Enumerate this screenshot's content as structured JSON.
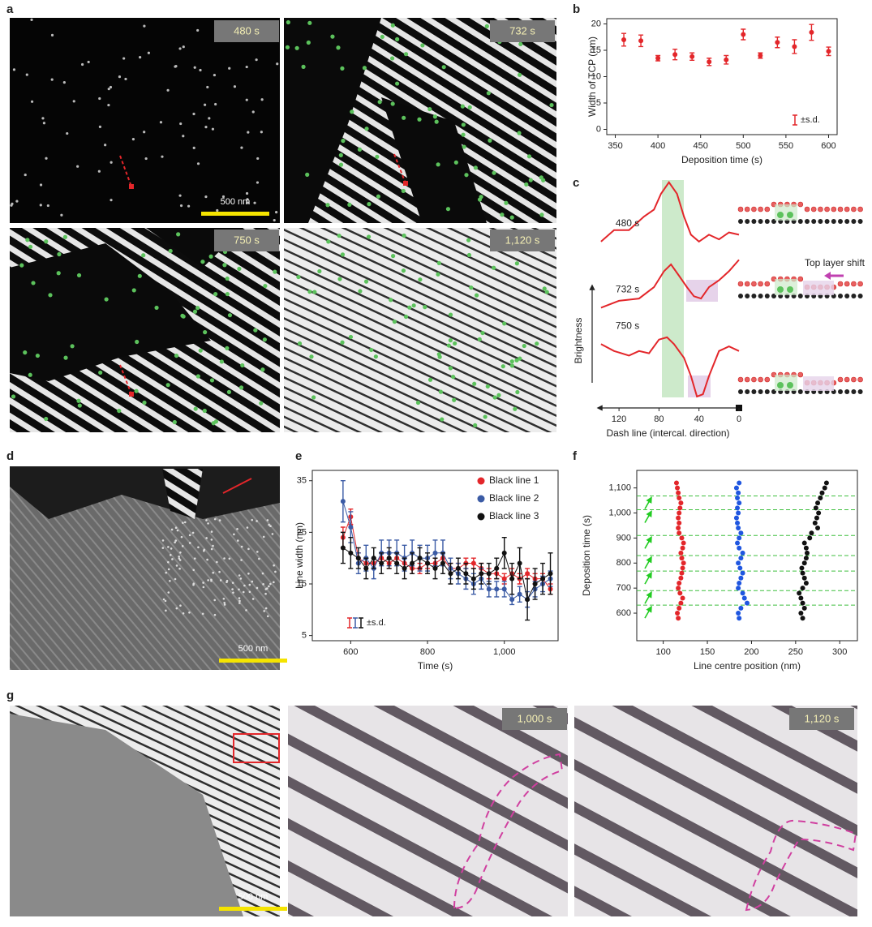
{
  "panel_labels": [
    "a",
    "b",
    "c",
    "d",
    "e",
    "f",
    "g"
  ],
  "images": {
    "a": {
      "times": [
        "480 s",
        "732 s",
        "750 s",
        "1,120 s"
      ],
      "scale_bar": "500 nm"
    },
    "d": {
      "scale_bar": "500 nm"
    },
    "g": {
      "times": [
        "1,000 s",
        "1,120 s"
      ],
      "scale_bar": "500 nm"
    }
  },
  "chart_data": [
    {
      "type": "scatter",
      "xlabel": "Deposition time (s)",
      "ylabel": "Width of TCP (nm)",
      "x": [
        360,
        380,
        400,
        420,
        440,
        460,
        480,
        500,
        520,
        540,
        560,
        580,
        600
      ],
      "series": [
        {
          "color": "#e3262a",
          "values": [
            17,
            16.8,
            13.5,
            14.2,
            13.8,
            12.8,
            13.2,
            18,
            14,
            16.5,
            15.7,
            18.4,
            14.8
          ],
          "errors": [
            1.2,
            1.1,
            0.5,
            1,
            0.7,
            0.7,
            0.8,
            1,
            0.5,
            1,
            1.3,
            1.5,
            0.8
          ]
        }
      ],
      "xlim": [
        340,
        610
      ],
      "ylim": [
        -1,
        21
      ],
      "xticks": [
        350,
        400,
        450,
        500,
        550,
        600
      ],
      "yticks": [
        0,
        5,
        10,
        15,
        20
      ],
      "error_label": "±s.d."
    },
    {
      "type": "line",
      "xlabel": "Dash line (intercal. direction)",
      "ylabel": "Brightness",
      "annotation": "Top layer shift",
      "xlim": [
        142,
        0
      ],
      "ylim": [
        0,
        100
      ],
      "xticks": [
        120,
        80,
        40,
        0
      ],
      "series": [
        {
          "name": "480 s",
          "color": "#e3262a",
          "x": [
            138,
            125,
            110,
            95,
            85,
            78,
            70,
            62,
            55,
            48,
            40,
            30,
            20,
            10,
            0
          ],
          "values": [
            73,
            78,
            78,
            84,
            87,
            94,
            99,
            94,
            84,
            76,
            73,
            76,
            74,
            77,
            76
          ]
        },
        {
          "name": "732 s",
          "color": "#e3262a",
          "x": [
            138,
            120,
            100,
            85,
            75,
            68,
            60,
            52,
            45,
            38,
            30,
            20,
            10,
            0
          ],
          "values": [
            44,
            47,
            48,
            53,
            60,
            63,
            58,
            53,
            49,
            48,
            53,
            56,
            60,
            65
          ]
        },
        {
          "name": "750 s",
          "color": "#e3262a",
          "x": [
            138,
            125,
            110,
            100,
            90,
            80,
            72,
            65,
            55,
            48,
            42,
            36,
            30,
            20,
            10,
            0
          ],
          "values": [
            28,
            25,
            23,
            25,
            24,
            30,
            31,
            28,
            22,
            14,
            5,
            6,
            14,
            25,
            27,
            25
          ]
        }
      ]
    },
    {
      "type": "line",
      "marker": "circle",
      "xlabel": "Time (s)",
      "ylabel": "Line width (nm)",
      "legend": "upper right",
      "error_label": "±s.d.",
      "x": [
        580,
        600,
        620,
        640,
        660,
        680,
        700,
        720,
        740,
        760,
        780,
        800,
        820,
        840,
        860,
        880,
        900,
        920,
        940,
        960,
        980,
        1000,
        1020,
        1040,
        1060,
        1080,
        1100,
        1120
      ],
      "series": [
        {
          "name": "Black line 1",
          "color": "#e3262a",
          "values": [
            24,
            28,
            20,
            19,
            19,
            20,
            19,
            20,
            19,
            18,
            18,
            19,
            19,
            20,
            18,
            18,
            19,
            19,
            18,
            17,
            17,
            16,
            17,
            16,
            17,
            16,
            16,
            14
          ],
          "errors": [
            2,
            1.5,
            1,
            1,
            1,
            1,
            1,
            1,
            1,
            1,
            1,
            1,
            1,
            1,
            1,
            1,
            1,
            1,
            1,
            1,
            1,
            1,
            1,
            1,
            1,
            1,
            1,
            1
          ]
        },
        {
          "name": "Black line 2",
          "color": "#3b5ba5",
          "values": [
            31,
            26,
            19,
            20,
            18,
            21,
            21,
            21,
            20,
            21,
            20,
            20,
            21,
            21,
            18,
            17,
            16,
            15,
            16,
            14,
            14,
            14,
            12,
            13,
            12,
            14,
            15,
            16
          ],
          "errors": [
            4,
            3,
            2,
            2.5,
            2,
            2.5,
            2.5,
            2.5,
            2.5,
            2.5,
            2.5,
            2.5,
            2.5,
            2.5,
            2,
            2,
            2,
            2,
            2,
            1.5,
            1.5,
            1.5,
            1,
            1.5,
            1.5,
            1.5,
            1.5,
            1.5
          ]
        },
        {
          "name": "Black line 3",
          "color": "#111111",
          "values": [
            22,
            21,
            20,
            18,
            20,
            19,
            20,
            19,
            18,
            19,
            20,
            19,
            18,
            19,
            17,
            18,
            17,
            16,
            17,
            17,
            18,
            21,
            16,
            19,
            12,
            15,
            16,
            17
          ],
          "errors": [
            3,
            3,
            2,
            2,
            2,
            2,
            2,
            2,
            2,
            2,
            2,
            2,
            2,
            2,
            2,
            2,
            2,
            2,
            2,
            2,
            2,
            3,
            3,
            3,
            4,
            3,
            3,
            4
          ]
        }
      ],
      "xlim": [
        500,
        1140
      ],
      "ylim": [
        4,
        37
      ],
      "xticks": [
        600,
        800,
        {
          "value": 1000,
          "label": "1,000"
        }
      ],
      "yticks": [
        5,
        15,
        25,
        35
      ]
    },
    {
      "type": "scatter",
      "xlabel": "Line centre position (nm)",
      "ylabel": "Deposition time (s)",
      "y": [
        580,
        600,
        620,
        640,
        660,
        680,
        700,
        720,
        740,
        760,
        780,
        800,
        820,
        840,
        860,
        880,
        900,
        920,
        940,
        960,
        980,
        1000,
        1020,
        1040,
        1060,
        1080,
        1100,
        1120
      ],
      "series": [
        {
          "color": "#e3262a",
          "x": [
            117,
            116,
            118,
            120,
            122,
            119,
            117,
            118,
            120,
            121,
            122,
            123,
            121,
            120,
            122,
            123,
            121,
            118,
            117,
            118,
            117,
            118,
            119,
            120,
            118,
            117,
            116,
            115
          ]
        },
        {
          "color": "#1f56e0",
          "x": [
            186,
            185,
            188,
            195,
            192,
            190,
            185,
            186,
            188,
            190,
            187,
            185,
            188,
            190,
            186,
            184,
            186,
            188,
            185,
            184,
            183,
            185,
            184,
            186,
            184,
            185,
            183,
            186
          ]
        },
        {
          "color": "#111111",
          "x": [
            258,
            256,
            260,
            258,
            256,
            254,
            258,
            262,
            260,
            258,
            257,
            260,
            262,
            263,
            262,
            260,
            266,
            268,
            275,
            272,
            274,
            276,
            273,
            275,
            278,
            280,
            283,
            285
          ]
        }
      ],
      "hlines": [
        632,
        690,
        768,
        830,
        910,
        1013,
        1068
      ],
      "xlim": [
        70,
        320
      ],
      "ylim": [
        490,
        1170
      ],
      "xticks": [
        100,
        150,
        200,
        250,
        300
      ],
      "yticks": [
        600,
        700,
        800,
        900,
        {
          "value": 1000,
          "label": "1,000"
        },
        {
          "value": 1100,
          "label": "1,100"
        }
      ]
    }
  ]
}
